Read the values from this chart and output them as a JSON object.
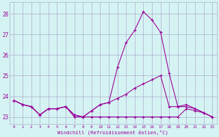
{
  "hours": [
    0,
    1,
    2,
    3,
    4,
    5,
    6,
    7,
    8,
    9,
    10,
    11,
    12,
    13,
    14,
    15,
    16,
    17,
    18,
    19,
    20,
    21,
    22,
    23
  ],
  "line1": [
    23.8,
    23.6,
    23.5,
    23.1,
    23.4,
    23.4,
    23.5,
    23.0,
    23.0,
    23.0,
    23.0,
    23.0,
    23.0,
    23.0,
    23.0,
    23.0,
    23.0,
    23.0,
    23.0,
    23.0,
    23.4,
    23.3,
    23.2,
    23.0
  ],
  "line2": [
    23.8,
    23.6,
    23.5,
    23.1,
    23.4,
    23.4,
    23.5,
    23.1,
    23.0,
    23.3,
    23.6,
    23.7,
    23.9,
    24.1,
    24.4,
    24.6,
    24.8,
    25.0,
    23.5,
    23.5,
    23.6,
    23.4,
    23.2,
    23.0
  ],
  "line3": [
    23.8,
    23.6,
    23.5,
    23.1,
    23.4,
    23.4,
    23.5,
    23.1,
    23.0,
    23.3,
    23.6,
    23.7,
    25.4,
    26.6,
    27.2,
    28.1,
    27.7,
    27.1,
    25.1,
    23.5,
    23.5,
    23.4,
    23.2,
    23.0
  ],
  "line_color": "#990099",
  "bg_color": "#d6f3f3",
  "grid_color": "#aaaacc",
  "xlabel": "Windchill (Refroidissement éolien,°C)",
  "ylabel_ticks": [
    23,
    24,
    25,
    26,
    27,
    28
  ],
  "xlim": [
    -0.5,
    23.5
  ],
  "ylim": [
    22.65,
    28.55
  ]
}
